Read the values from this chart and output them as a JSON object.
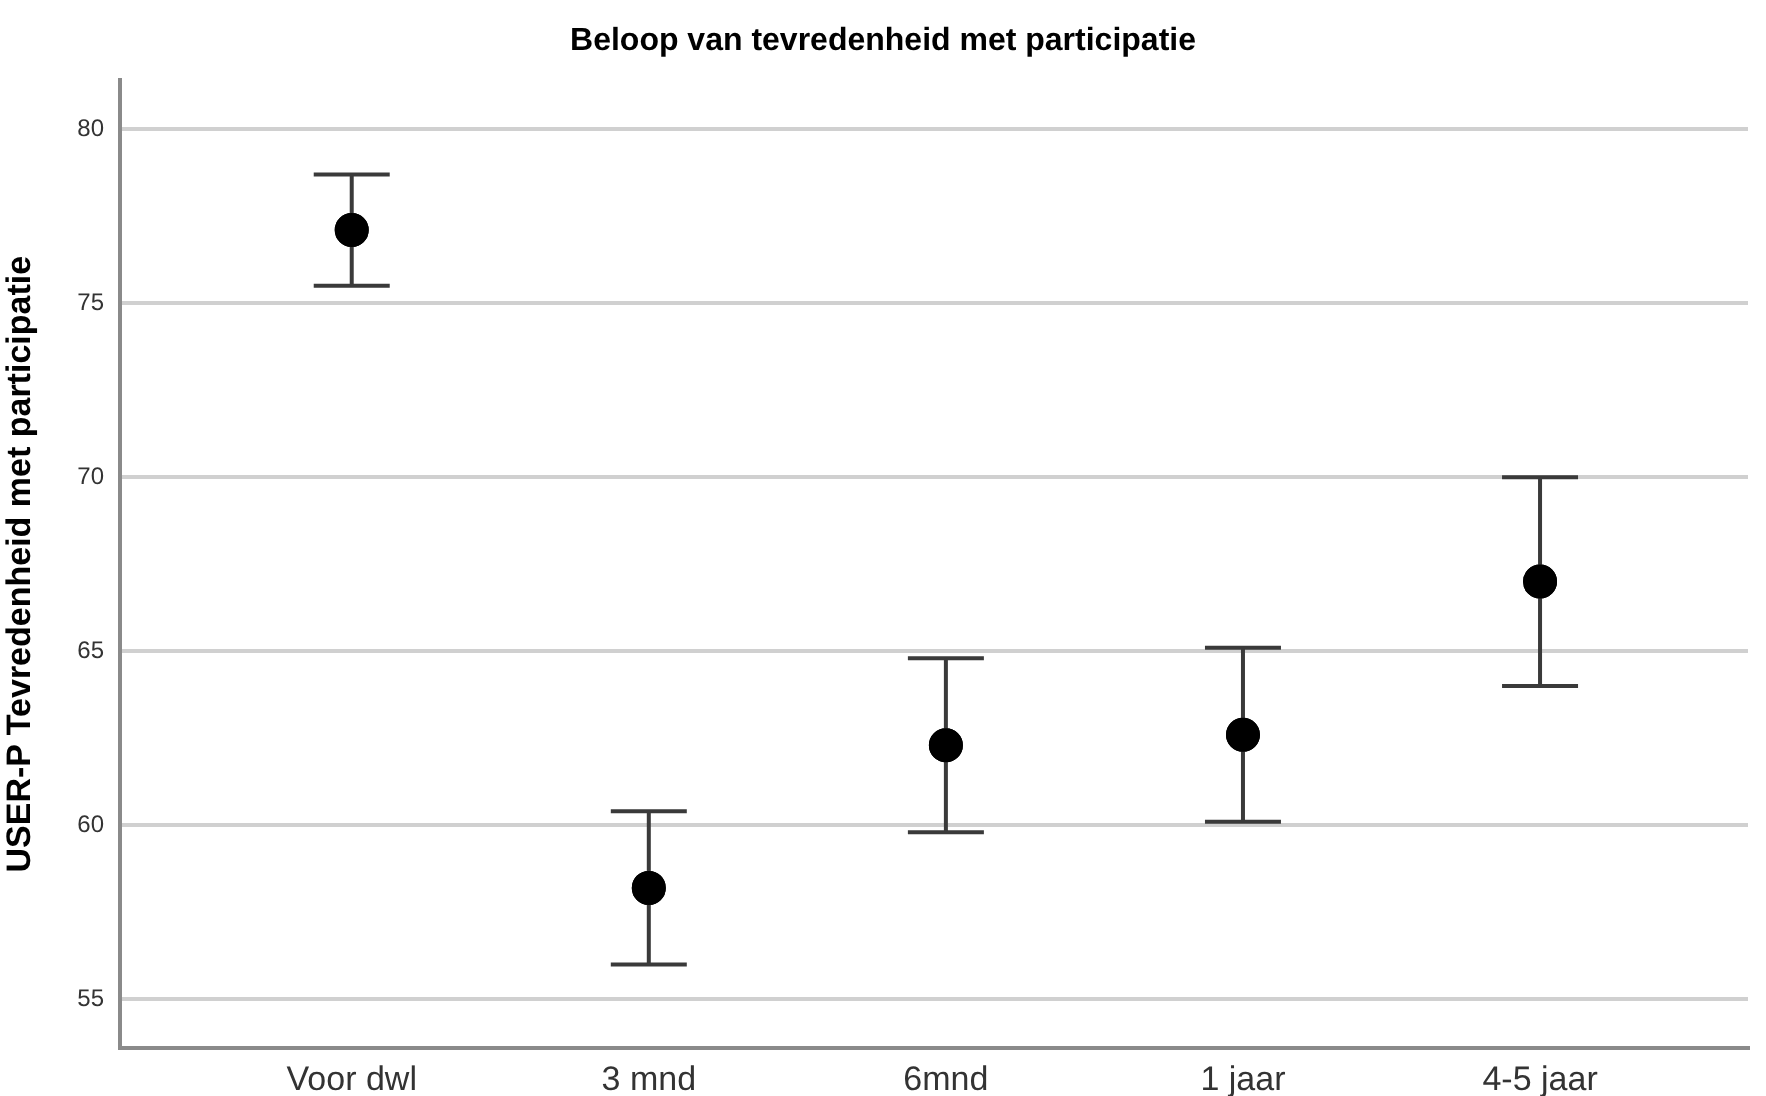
{
  "chart_data": {
    "type": "scatter",
    "title": "Beloop van tevredenheid met participatie",
    "ylabel": "USER-P Tevredenheid met participatie",
    "categories": [
      "Voor dwl",
      "3 mnd",
      "6mnd",
      "1 jaar",
      "4-5 jaar"
    ],
    "values": [
      77.1,
      58.2,
      62.3,
      62.6,
      67.0
    ],
    "errors": [
      1.6,
      2.2,
      2.5,
      2.5,
      3.0
    ],
    "color": "#000000",
    "ylim": [
      53.6,
      81.4
    ],
    "yticks": [
      55,
      60,
      65,
      70,
      75,
      80
    ],
    "grid": "y",
    "marker": "circle"
  }
}
